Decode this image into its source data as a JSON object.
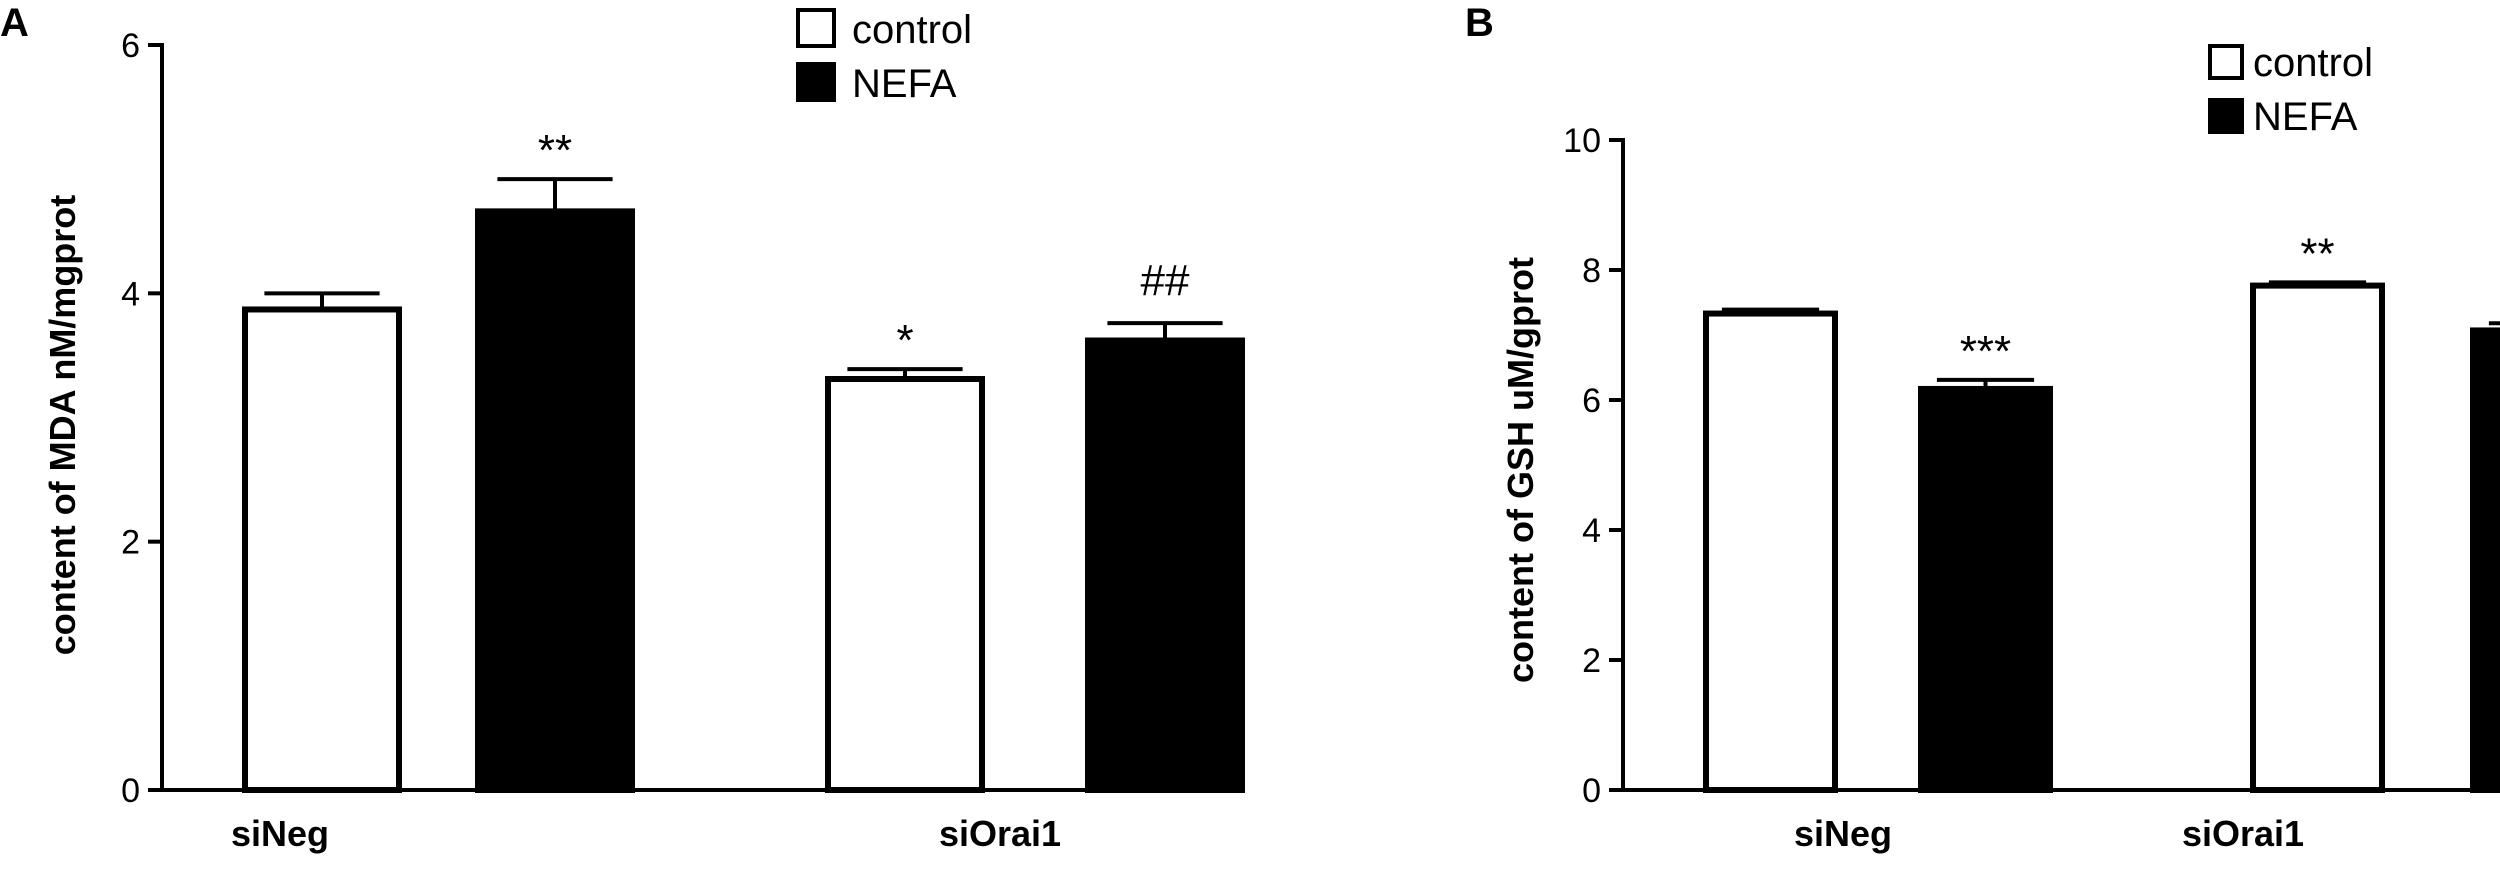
{
  "chart_data": [
    {
      "panel": "A",
      "type": "bar",
      "title": "",
      "xlabel": "",
      "ylabel": "content of MDA nM/mgprot",
      "categories": [
        "siNeg",
        "siOrai1"
      ],
      "ylim": [
        0,
        6
      ],
      "yticks": [
        0,
        2,
        4,
        6
      ],
      "grid": false,
      "legend_position": "top-center",
      "series": [
        {
          "name": "control",
          "values": [
            3.87,
            3.31
          ],
          "errors": [
            0.13,
            0.08
          ],
          "annotations": [
            "",
            "*"
          ],
          "color": "#ffffff"
        },
        {
          "name": "NEFA",
          "values": [
            4.66,
            3.62
          ],
          "errors": [
            0.26,
            0.14
          ],
          "annotations": [
            "**",
            "##"
          ],
          "color": "#000000"
        }
      ]
    },
    {
      "panel": "B",
      "type": "bar",
      "title": "",
      "xlabel": "",
      "ylabel": "content of GSH uM/gprot",
      "categories": [
        "siNeg",
        "siOrai1"
      ],
      "ylim": [
        0,
        10
      ],
      "yticks": [
        0,
        2,
        4,
        6,
        8,
        10
      ],
      "grid": false,
      "legend_position": "top-right",
      "series": [
        {
          "name": "control",
          "values": [
            7.33,
            7.76
          ],
          "errors": [
            0.06,
            0.05
          ],
          "annotations": [
            "",
            "**"
          ],
          "color": "#ffffff"
        },
        {
          "name": "NEFA",
          "values": [
            6.17,
            7.07
          ],
          "errors": [
            0.14,
            0.11
          ],
          "annotations": [
            "***",
            "##"
          ],
          "color": "#000000"
        }
      ]
    }
  ]
}
